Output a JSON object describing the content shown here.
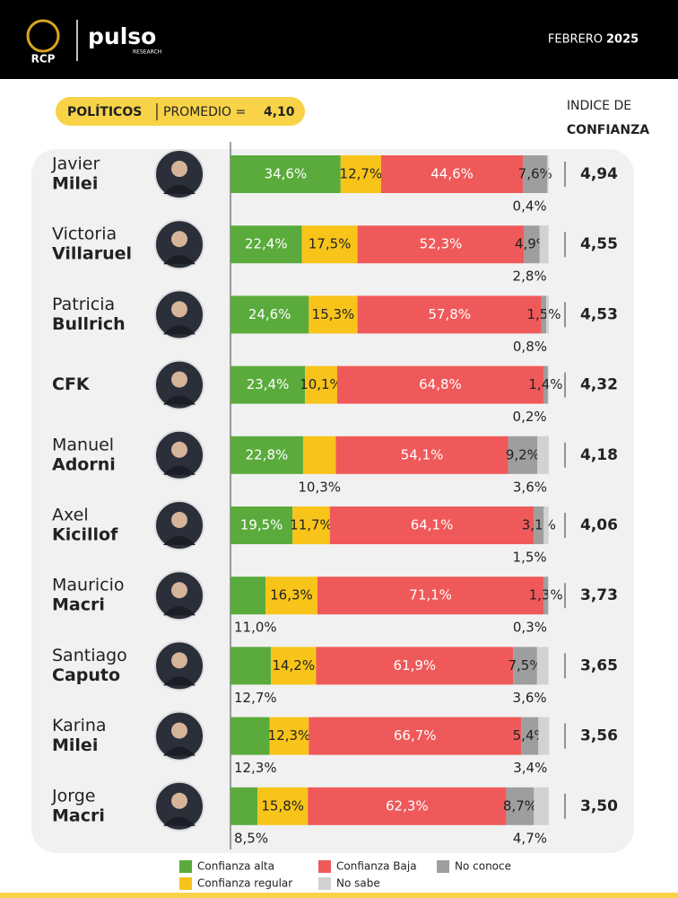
{
  "header": {
    "logo": "RCP",
    "brand": "pulso",
    "brand_sub": "RESEARCH",
    "month": "FEBRERO",
    "year": "2025"
  },
  "badge": {
    "label": "POLÍTICOS",
    "text": "PROMEDIO =",
    "average": "4,10"
  },
  "chart_data": {
    "type": "bar",
    "orientation": "horizontal",
    "stacked": true,
    "index_title": [
      "INDICE DE",
      "CONFIANZA"
    ],
    "categories": [
      {
        "first": "Javier",
        "last": "Milei"
      },
      {
        "first": "Victoria",
        "last": "Villaruel"
      },
      {
        "first": "Patricia",
        "last": "Bullrich"
      },
      {
        "last": "CFK"
      },
      {
        "first": "Manuel",
        "last": "Adorni"
      },
      {
        "first": "Axel",
        "last": "Kicillof"
      },
      {
        "first": "Mauricio",
        "last": "Macri"
      },
      {
        "first": "Santiago",
        "last": "Caputo"
      },
      {
        "first": "Karina",
        "last": "Milei"
      },
      {
        "first": "Jorge",
        "last": "Macri"
      }
    ],
    "xlim": [
      0,
      100
    ],
    "series": [
      {
        "name": "Confianza alta",
        "color": "#5aab3c",
        "values": [
          34.6,
          22.4,
          24.6,
          23.4,
          22.8,
          19.5,
          11.0,
          12.7,
          12.3,
          8.5
        ],
        "value_labels": [
          "34,6%",
          "22,4%",
          "24,6%",
          "23,4%",
          "22,8%",
          "19,5%",
          "11,0%",
          "12,7%",
          "12,3%",
          "8,5%"
        ]
      },
      {
        "name": "Confianza regular",
        "color": "#f8c41a",
        "values": [
          12.7,
          17.5,
          15.3,
          10.1,
          10.3,
          11.7,
          16.3,
          14.2,
          12.3,
          15.8
        ],
        "value_labels": [
          "12,7%",
          "17,5%",
          "15,3%",
          "10,1%",
          "10,3%",
          "11,7%",
          "16,3%",
          "14,2%",
          "12,3%",
          "15,8%"
        ]
      },
      {
        "name": "Confianza Baja",
        "color": "#f0595a",
        "values": [
          44.6,
          52.3,
          57.8,
          64.8,
          54.1,
          64.1,
          71.1,
          61.9,
          66.7,
          62.3
        ],
        "value_labels": [
          "44,6%",
          "52,3%",
          "57,8%",
          "64,8%",
          "54,1%",
          "64,1%",
          "71,1%",
          "61,9%",
          "66,7%",
          "62,3%"
        ]
      },
      {
        "name": "No conoce",
        "color": "#9e9e9e",
        "values": [
          7.6,
          4.9,
          1.5,
          1.4,
          9.2,
          3.1,
          1.3,
          7.5,
          5.4,
          8.7
        ],
        "value_labels": [
          "7,6%",
          "4,9%",
          "1,5%",
          "1,4%",
          "9,2%",
          "3,1%",
          "1,3%",
          "7,5%",
          "5,4%",
          "8,7%"
        ]
      },
      {
        "name": "No sabe",
        "color": "#d2d2d2",
        "values": [
          0.4,
          2.8,
          0.8,
          0.2,
          3.6,
          1.5,
          0.3,
          3.6,
          3.4,
          4.7
        ],
        "value_labels": [
          "0,4%",
          "2,8%",
          "0,8%",
          "0,2%",
          "3,6%",
          "1,5%",
          "0,3%",
          "3,6%",
          "3,4%",
          "4,7%"
        ]
      }
    ],
    "index_values": [
      4.94,
      4.55,
      4.53,
      4.32,
      4.18,
      4.06,
      3.73,
      3.65,
      3.56,
      3.5
    ],
    "index_labels": [
      "4,94",
      "4,55",
      "4,53",
      "4,32",
      "4,18",
      "4,06",
      "3,73",
      "3,65",
      "3,56",
      "3,50"
    ]
  }
}
